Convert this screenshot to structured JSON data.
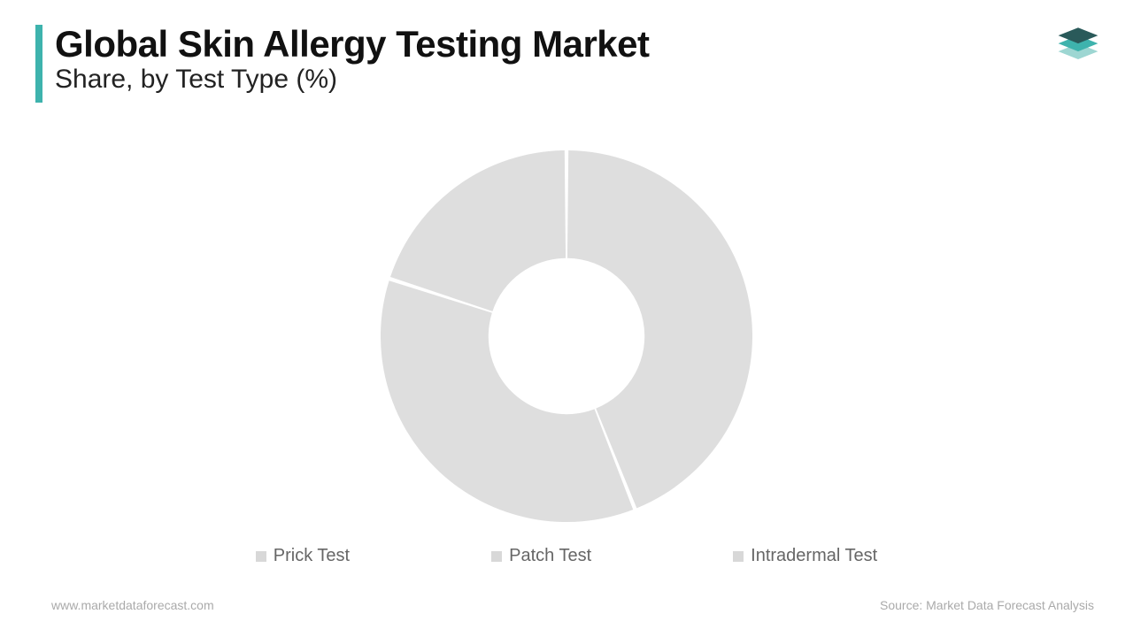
{
  "header": {
    "title": "Global  Skin Allergy Testing Market",
    "subtitle": "Share, by Test Type (%)",
    "accent_color": "#3eb3ad",
    "title_color": "#111111",
    "title_fontsize": 42,
    "subtitle_fontsize": 30
  },
  "logo": {
    "top_color": "#2a5a5a",
    "mid_color": "#3eb3ad",
    "bot_color": "#9dd6d2"
  },
  "chart": {
    "type": "donut",
    "background_color": "#ffffff",
    "slice_color": "#dedede",
    "gap_color": "#ffffff",
    "inner_radius_ratio": 0.42,
    "outer_radius": 210,
    "gap_width_deg": 1.2,
    "series": [
      {
        "label": "Prick Test",
        "value": 44,
        "color": "#dedede"
      },
      {
        "label": "Patch Test",
        "value": 36,
        "color": "#dedede"
      },
      {
        "label": "Intradermal Test",
        "value": 20,
        "color": "#dedede"
      }
    ]
  },
  "legend": {
    "bullet": "■",
    "items": [
      "Prick Test",
      "Patch Test",
      "Intradermal Test"
    ],
    "swatch_color": "#d8d8d8",
    "text_color": "#666666",
    "fontsize": 20
  },
  "footer": {
    "left": "www.marketdataforecast.com",
    "right": "Source: Market Data Forecast Analysis",
    "color": "#aaaaaa",
    "fontsize": 14
  }
}
